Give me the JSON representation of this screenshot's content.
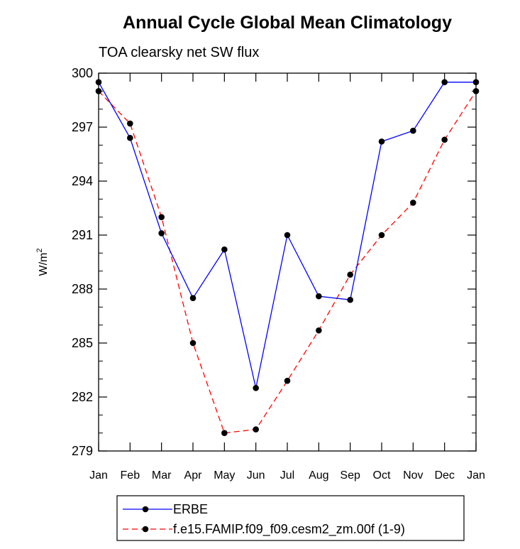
{
  "chart_data": {
    "type": "line",
    "title": "Annual Cycle Global Mean Climatology",
    "subtitle": "TOA clearsky net SW flux",
    "ylabel": "W/m",
    "ylabel_sup": "2",
    "xlabel": "",
    "categories": [
      "Jan",
      "Feb",
      "Mar",
      "Apr",
      "May",
      "Jun",
      "Jul",
      "Aug",
      "Sep",
      "Oct",
      "Nov",
      "Dec",
      "Jan"
    ],
    "ylim": [
      279,
      300
    ],
    "yticks": [
      279,
      282,
      285,
      288,
      291,
      294,
      297,
      300
    ],
    "series": [
      {
        "name": "ERBE",
        "color": "#0000ff",
        "dash": "solid",
        "values": [
          299.5,
          296.4,
          291.1,
          287.5,
          290.2,
          282.5,
          291.0,
          287.6,
          287.4,
          296.2,
          296.8,
          299.5,
          299.5
        ]
      },
      {
        "name": "f.e15.FAMIP.f09_f09.cesm2_zm.00f (1-9)",
        "color": "#ff0000",
        "dash": "dashed",
        "values": [
          299.0,
          297.2,
          292.0,
          285.0,
          280.0,
          280.2,
          282.9,
          285.7,
          288.8,
          291.0,
          292.8,
          296.3,
          299.0
        ]
      }
    ],
    "legend_position": "bottom",
    "grid": false
  }
}
